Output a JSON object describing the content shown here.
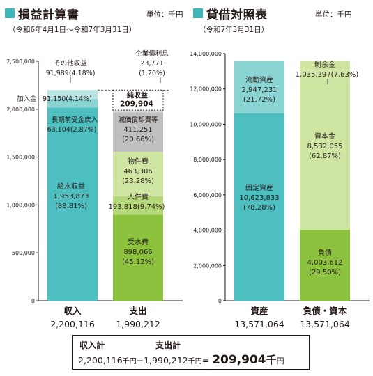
{
  "income": {
    "title": "損益計算書",
    "unit": "単位：千円",
    "period": "（令和6年4月1日～令和7年3月31日）",
    "ylim": [
      0,
      2500000
    ],
    "yticks": [
      "0",
      "500,000",
      "1,000,000",
      "1,500,000",
      "2,000,000",
      "2,500,000"
    ],
    "columns": [
      {
        "label": "収入",
        "total": "2,200,116",
        "segments": [
          {
            "name": "給水収益",
            "value": 1953873,
            "text": "1,953,873",
            "pct": "(88.81%)",
            "color": "#4dbfc0"
          },
          {
            "name": "長期前受金戻入",
            "value": 63104,
            "text": "63,104(2.87%)",
            "pct": "",
            "color": "#4dbfc0"
          },
          {
            "name": "加入金",
            "value": 91150,
            "text": "91,150(4.14%)",
            "pct": "",
            "color": "#8ad4d3"
          },
          {
            "name": "その他収益",
            "value": 91989,
            "text": "91,989(4.18%)",
            "pct": "",
            "color": "#b9e4e2"
          }
        ]
      },
      {
        "label": "支出",
        "total": "1,990,212",
        "segments": [
          {
            "name": "受水費",
            "value": 898066,
            "text": "898,066",
            "pct": "(45.12%)",
            "color": "#8dc23e"
          },
          {
            "name": "人件費",
            "value": 193818,
            "text": "193,818(9.74%)",
            "pct": "",
            "color": "#b5d97a"
          },
          {
            "name": "物件費",
            "value": 463306,
            "text": "463,306",
            "pct": "(23.28%)",
            "color": "#cfe6a3"
          },
          {
            "name": "減価償却費等",
            "value": 411251,
            "text": "411,251",
            "pct": "(20.66%)",
            "color": "#bfbfbf"
          },
          {
            "name": "企業債利息",
            "value": 23771,
            "text": "23,771",
            "pct": "(1.20%)",
            "color": "#d9d9d9"
          }
        ]
      }
    ],
    "net_income": {
      "label": "純収益",
      "value": 209904,
      "text": "209,904"
    }
  },
  "balance": {
    "title": "貸借対照表",
    "unit": "単位：千円",
    "period": "（令和7年3月31日）",
    "ylim": [
      0,
      14000000
    ],
    "yticks": [
      "0",
      "2,000,000",
      "4,000,000",
      "6,000,000",
      "8,000,000",
      "10,000,000",
      "12,000,000",
      "14,000,000"
    ],
    "columns": [
      {
        "label": "資産",
        "total": "13,571,064",
        "segments": [
          {
            "name": "固定資産",
            "value": 10623833,
            "text": "10,623,833",
            "pct": "(78.28%)",
            "color": "#4dbfc0"
          },
          {
            "name": "流動資産",
            "value": 2947231,
            "text": "2,947,231",
            "pct": "(21.72%)",
            "color": "#8ad4d3"
          }
        ]
      },
      {
        "label": "負債・資本",
        "total": "13,571,064",
        "segments": [
          {
            "name": "負債",
            "value": 4003612,
            "text": "4,003,612",
            "pct": "(29.50%)",
            "color": "#8dc23e"
          },
          {
            "name": "資本金",
            "value": 8532055,
            "text": "8,532,055",
            "pct": "(62.87%)",
            "color": "#cfe6a3"
          },
          {
            "name": "剰余金",
            "value": 1035397,
            "text": "1,035,397(7.63%)",
            "pct": "",
            "color": "#cfe6a3"
          }
        ]
      }
    ]
  },
  "summary": {
    "income_label": "収入計",
    "expense_label": "支出計",
    "income_value": "2,200,116",
    "income_unit": "千円",
    "minus": "−",
    "expense_value": "1,990,212",
    "expense_unit": "千円",
    "equals": "=",
    "result_value": "209,904",
    "result_unit_big": "千",
    "result_unit_small": "円"
  },
  "chart_data": [
    {
      "type": "bar",
      "title": "損益計算書",
      "categories": [
        "収入",
        "支出"
      ],
      "stacked": true,
      "ylim": [
        0,
        2500000
      ],
      "series": [
        {
          "name": "給水収益",
          "values": [
            1953873,
            0
          ]
        },
        {
          "name": "長期前受金戻入",
          "values": [
            63104,
            0
          ]
        },
        {
          "name": "加入金",
          "values": [
            91150,
            0
          ]
        },
        {
          "name": "その他収益",
          "values": [
            91989,
            0
          ]
        },
        {
          "name": "受水費",
          "values": [
            0,
            898066
          ]
        },
        {
          "name": "人件費",
          "values": [
            0,
            193818
          ]
        },
        {
          "name": "物件費",
          "values": [
            0,
            463306
          ]
        },
        {
          "name": "減価償却費等",
          "values": [
            0,
            411251
          ]
        },
        {
          "name": "企業債利息",
          "values": [
            0,
            23771
          ]
        },
        {
          "name": "純収益",
          "values": [
            0,
            209904
          ]
        }
      ]
    },
    {
      "type": "bar",
      "title": "貸借対照表",
      "categories": [
        "資産",
        "負債・資本"
      ],
      "stacked": true,
      "ylim": [
        0,
        14000000
      ],
      "series": [
        {
          "name": "固定資産",
          "values": [
            10623833,
            0
          ]
        },
        {
          "name": "流動資産",
          "values": [
            2947231,
            0
          ]
        },
        {
          "name": "負債",
          "values": [
            0,
            4003612
          ]
        },
        {
          "name": "資本金",
          "values": [
            0,
            8532055
          ]
        },
        {
          "name": "剰余金",
          "values": [
            0,
            1035397
          ]
        }
      ]
    }
  ]
}
